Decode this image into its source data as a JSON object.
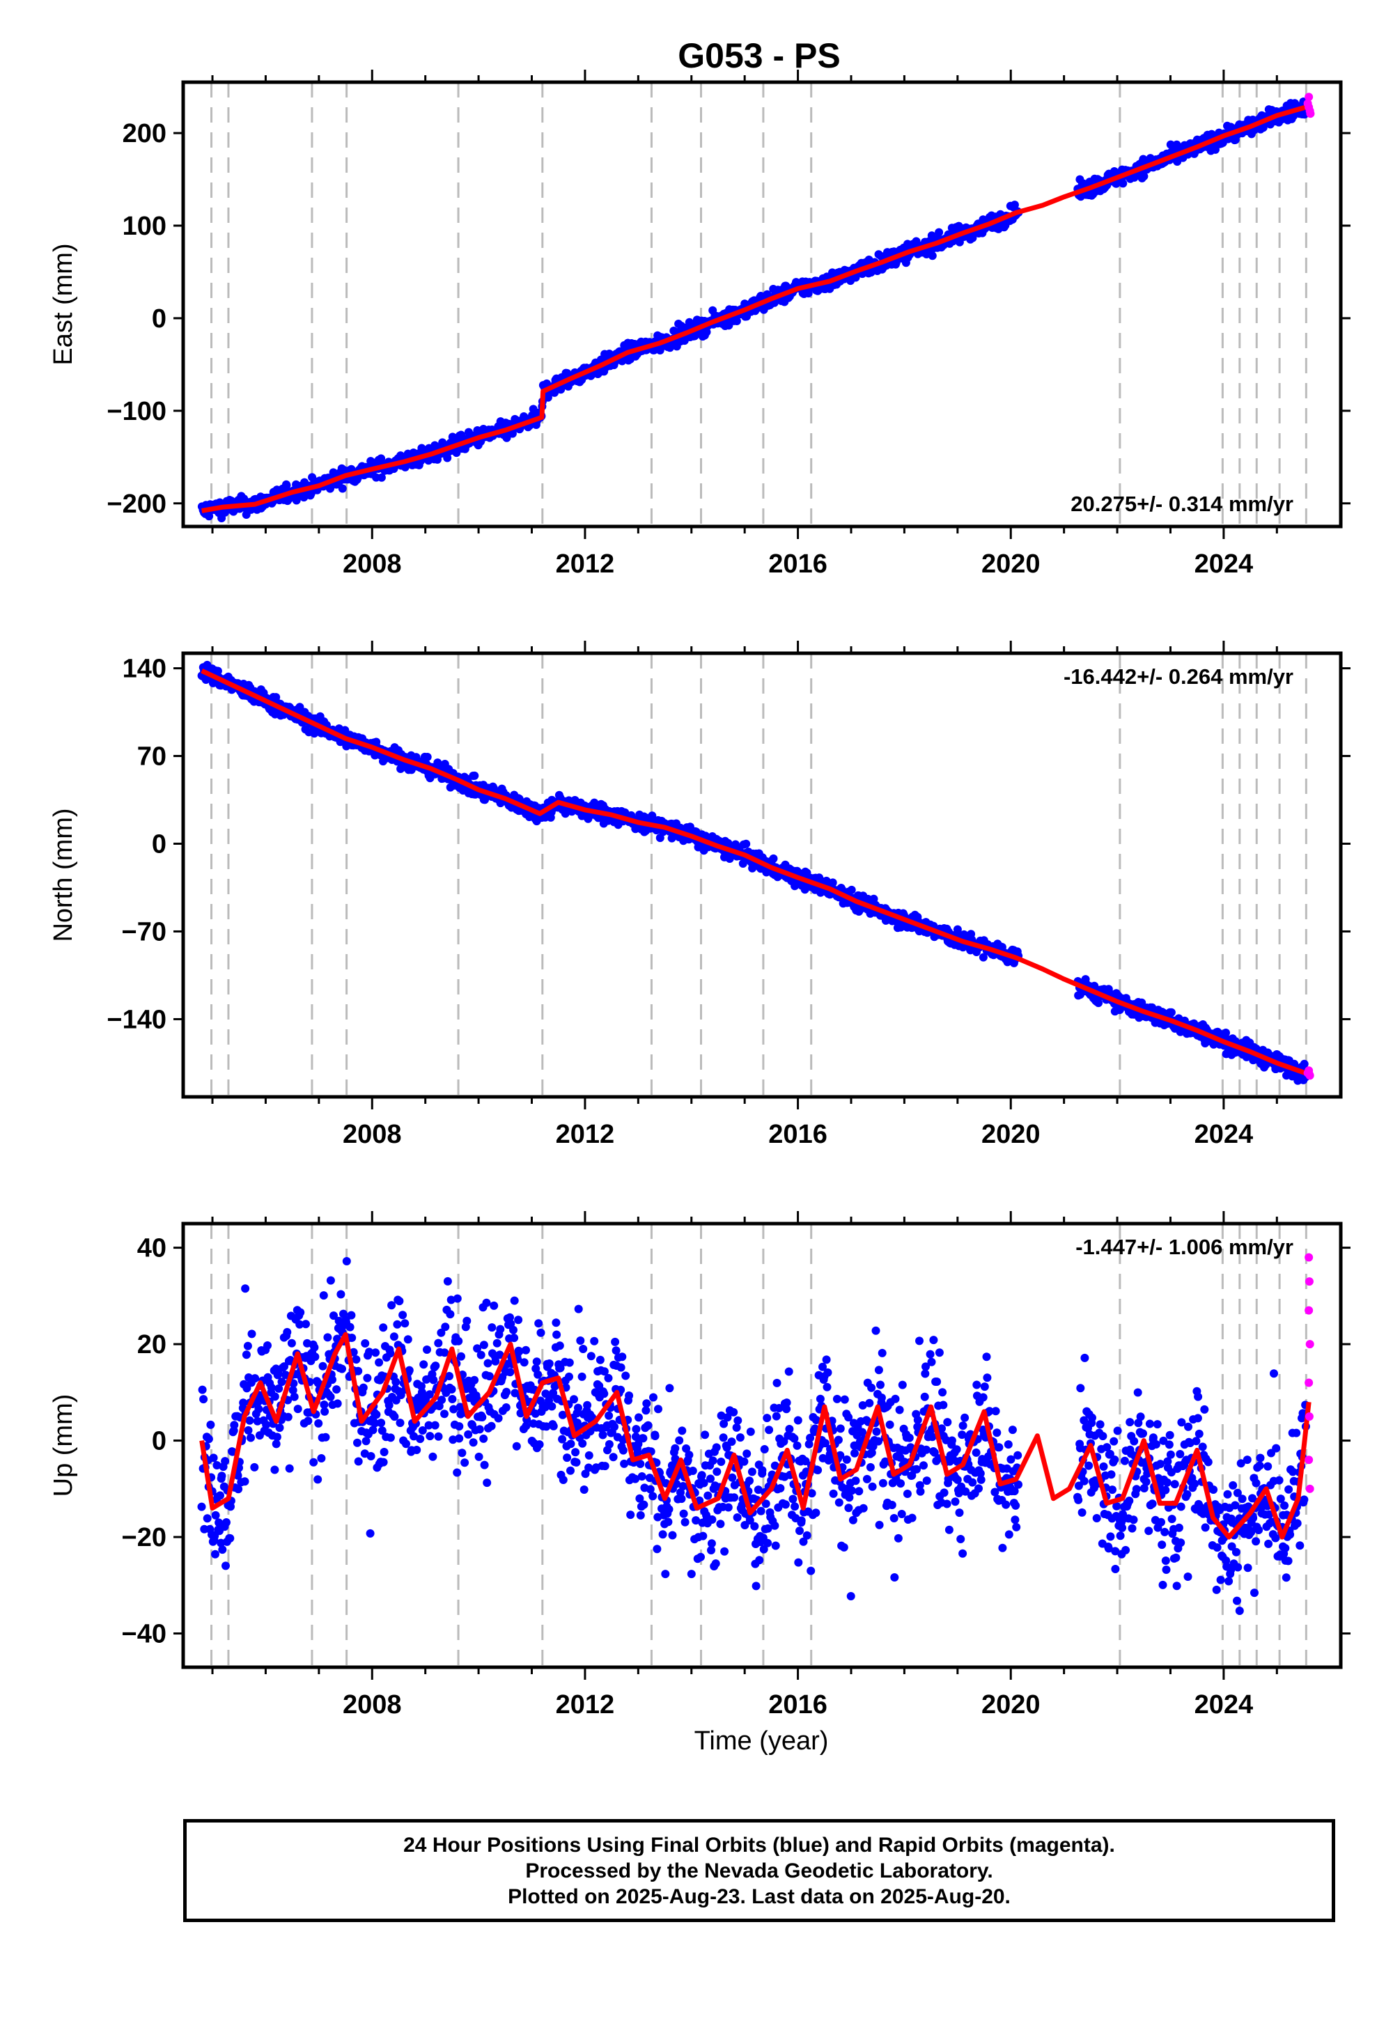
{
  "chart_data": {
    "type": "scatter",
    "title": "G053 - PS",
    "x_label": "Time (year)",
    "x_ticks": [
      "2008",
      "2012",
      "2016",
      "2020",
      "2024"
    ],
    "x_range": [
      2004.45,
      2026.2
    ],
    "event_lines": [
      2004.98,
      2005.3,
      2006.87,
      2007.52,
      2009.62,
      2011.2,
      2013.25,
      2014.18,
      2015.35,
      2016.25,
      2022.05,
      2023.98,
      2024.3,
      2024.62,
      2025.05,
      2025.55
    ],
    "colors": {
      "final": "#0000ff",
      "rapid": "#ff00ff",
      "model": "#ff0000",
      "event": "#bbbbbb"
    },
    "panels": [
      {
        "id": "east",
        "ylabel": "East (mm)",
        "ylim": [
          -225,
          255
        ],
        "yticks": [
          "200",
          "100",
          "0",
          "−100",
          "−200"
        ],
        "rate_label": "20.275+/- 0.314 mm/yr",
        "rate_pos": "bottom-right",
        "rate": 20.275,
        "model": [
          [
            2004.8,
            -208
          ],
          [
            2005.2,
            -204
          ],
          [
            2005.8,
            -201
          ],
          [
            2006.5,
            -188
          ],
          [
            2007.0,
            -181
          ],
          [
            2007.5,
            -170
          ],
          [
            2008.0,
            -163
          ],
          [
            2008.6,
            -155
          ],
          [
            2009.1,
            -147
          ],
          [
            2009.6,
            -137
          ],
          [
            2010.0,
            -129
          ],
          [
            2010.5,
            -121
          ],
          [
            2011.19,
            -107
          ],
          [
            2011.21,
            -79
          ],
          [
            2011.7,
            -66
          ],
          [
            2012.3,
            -51
          ],
          [
            2012.8,
            -37
          ],
          [
            2013.4,
            -27
          ],
          [
            2013.9,
            -16
          ],
          [
            2014.4,
            -4
          ],
          [
            2015.0,
            9
          ],
          [
            2015.5,
            21
          ],
          [
            2016.0,
            32
          ],
          [
            2016.6,
            40
          ],
          [
            2017.1,
            51
          ],
          [
            2017.6,
            61
          ],
          [
            2018.1,
            72
          ],
          [
            2018.6,
            81
          ],
          [
            2019.1,
            92
          ],
          [
            2019.6,
            102
          ],
          [
            2020.1,
            114
          ],
          [
            2020.6,
            122
          ],
          [
            2021.0,
            131
          ],
          [
            2021.5,
            141
          ],
          [
            2022.0,
            152
          ],
          [
            2022.5,
            163
          ],
          [
            2023.0,
            174
          ],
          [
            2023.5,
            185
          ],
          [
            2024.0,
            197
          ],
          [
            2024.5,
            207
          ],
          [
            2025.0,
            219
          ],
          [
            2025.6,
            229
          ]
        ],
        "noise": 4.5,
        "rapid": [
          [
            2025.58,
            232
          ],
          [
            2025.6,
            239
          ],
          [
            2025.62,
            224
          ],
          [
            2025.6,
            228
          ],
          [
            2025.63,
            221
          ]
        ]
      },
      {
        "id": "north",
        "ylabel": "North (mm)",
        "ylim": [
          -202,
          152
        ],
        "yticks": [
          "140",
          "70",
          "0",
          "−70",
          "−140"
        ],
        "rate_label": "-16.442+/- 0.264 mm/yr",
        "rate_pos": "top-right",
        "rate": -16.442,
        "model": [
          [
            2004.8,
            138
          ],
          [
            2005.2,
            130
          ],
          [
            2005.8,
            118
          ],
          [
            2006.5,
            104
          ],
          [
            2007.0,
            94
          ],
          [
            2007.5,
            84
          ],
          [
            2008.0,
            77
          ],
          [
            2008.6,
            67
          ],
          [
            2009.1,
            60
          ],
          [
            2009.6,
            51
          ],
          [
            2010.0,
            43
          ],
          [
            2010.5,
            36
          ],
          [
            2011.15,
            24
          ],
          [
            2011.5,
            33
          ],
          [
            2012.0,
            27
          ],
          [
            2012.5,
            23
          ],
          [
            2013.0,
            17
          ],
          [
            2013.5,
            13
          ],
          [
            2014.0,
            6
          ],
          [
            2014.5,
            -2
          ],
          [
            2015.0,
            -9
          ],
          [
            2015.5,
            -19
          ],
          [
            2016.0,
            -27
          ],
          [
            2016.6,
            -36
          ],
          [
            2017.1,
            -46
          ],
          [
            2017.6,
            -54
          ],
          [
            2018.1,
            -62
          ],
          [
            2018.6,
            -70
          ],
          [
            2019.1,
            -78
          ],
          [
            2019.6,
            -84
          ],
          [
            2020.1,
            -91
          ],
          [
            2020.6,
            -100
          ],
          [
            2021.0,
            -108
          ],
          [
            2021.5,
            -117
          ],
          [
            2022.0,
            -126
          ],
          [
            2022.5,
            -134
          ],
          [
            2023.0,
            -141
          ],
          [
            2023.5,
            -149
          ],
          [
            2024.0,
            -158
          ],
          [
            2024.5,
            -166
          ],
          [
            2025.0,
            -175
          ],
          [
            2025.6,
            -184
          ]
        ],
        "noise": 3.5,
        "rapid": [
          [
            2025.58,
            -183
          ],
          [
            2025.6,
            -181
          ],
          [
            2025.62,
            -185
          ],
          [
            2025.61,
            -184
          ]
        ]
      },
      {
        "id": "up",
        "ylabel": "Up (mm)",
        "ylim": [
          -47,
          45
        ],
        "yticks": [
          "40",
          "20",
          "0",
          "−20",
          "−40"
        ],
        "rate_label": "-1.447+/- 1.006 mm/yr",
        "rate_pos": "top-right",
        "rate": -1.447,
        "model": [
          [
            2004.8,
            0
          ],
          [
            2005.0,
            -14
          ],
          [
            2005.3,
            -12
          ],
          [
            2005.6,
            5
          ],
          [
            2005.9,
            12
          ],
          [
            2006.2,
            4
          ],
          [
            2006.6,
            18
          ],
          [
            2006.9,
            6
          ],
          [
            2007.3,
            18
          ],
          [
            2007.5,
            22
          ],
          [
            2007.8,
            4
          ],
          [
            2008.2,
            10
          ],
          [
            2008.5,
            19
          ],
          [
            2008.8,
            4
          ],
          [
            2009.2,
            9
          ],
          [
            2009.5,
            19
          ],
          [
            2009.8,
            5
          ],
          [
            2010.2,
            10
          ],
          [
            2010.6,
            20
          ],
          [
            2010.9,
            5
          ],
          [
            2011.2,
            12
          ],
          [
            2011.5,
            13
          ],
          [
            2011.8,
            1
          ],
          [
            2012.2,
            4
          ],
          [
            2012.6,
            10
          ],
          [
            2012.9,
            -4
          ],
          [
            2013.2,
            -3
          ],
          [
            2013.5,
            -12
          ],
          [
            2013.8,
            -4
          ],
          [
            2014.1,
            -14
          ],
          [
            2014.5,
            -12
          ],
          [
            2014.8,
            -3
          ],
          [
            2015.1,
            -15
          ],
          [
            2015.5,
            -10
          ],
          [
            2015.8,
            -2
          ],
          [
            2016.1,
            -14
          ],
          [
            2016.5,
            7
          ],
          [
            2016.8,
            -8
          ],
          [
            2017.1,
            -6
          ],
          [
            2017.5,
            7
          ],
          [
            2017.8,
            -7
          ],
          [
            2018.1,
            -5
          ],
          [
            2018.5,
            7
          ],
          [
            2018.8,
            -7
          ],
          [
            2019.1,
            -5
          ],
          [
            2019.5,
            6
          ],
          [
            2019.8,
            -9
          ],
          [
            2020.1,
            -8
          ],
          [
            2020.5,
            1
          ],
          [
            2020.8,
            -12
          ],
          [
            2021.1,
            -10
          ],
          [
            2021.5,
            -1
          ],
          [
            2021.8,
            -13
          ],
          [
            2022.1,
            -12
          ],
          [
            2022.5,
            0
          ],
          [
            2022.8,
            -13
          ],
          [
            2023.1,
            -13
          ],
          [
            2023.5,
            -2
          ],
          [
            2023.8,
            -16
          ],
          [
            2024.1,
            -20
          ],
          [
            2024.5,
            -15
          ],
          [
            2024.8,
            -10
          ],
          [
            2025.1,
            -20
          ],
          [
            2025.4,
            -12
          ],
          [
            2025.6,
            8
          ]
        ],
        "noise": 7,
        "rapid": [
          [
            2025.6,
            38
          ],
          [
            2025.61,
            33
          ],
          [
            2025.6,
            27
          ],
          [
            2025.62,
            20
          ],
          [
            2025.6,
            12
          ],
          [
            2025.61,
            5
          ],
          [
            2025.6,
            -4
          ],
          [
            2025.62,
            -10
          ]
        ]
      }
    ]
  },
  "footer": {
    "line1": "24 Hour Positions Using Final Orbits (blue) and Rapid Orbits (magenta).",
    "line2": "Processed by the Nevada Geodetic Laboratory.",
    "line3": "Plotted on 2025-Aug-23. Last data on 2025-Aug-20."
  }
}
